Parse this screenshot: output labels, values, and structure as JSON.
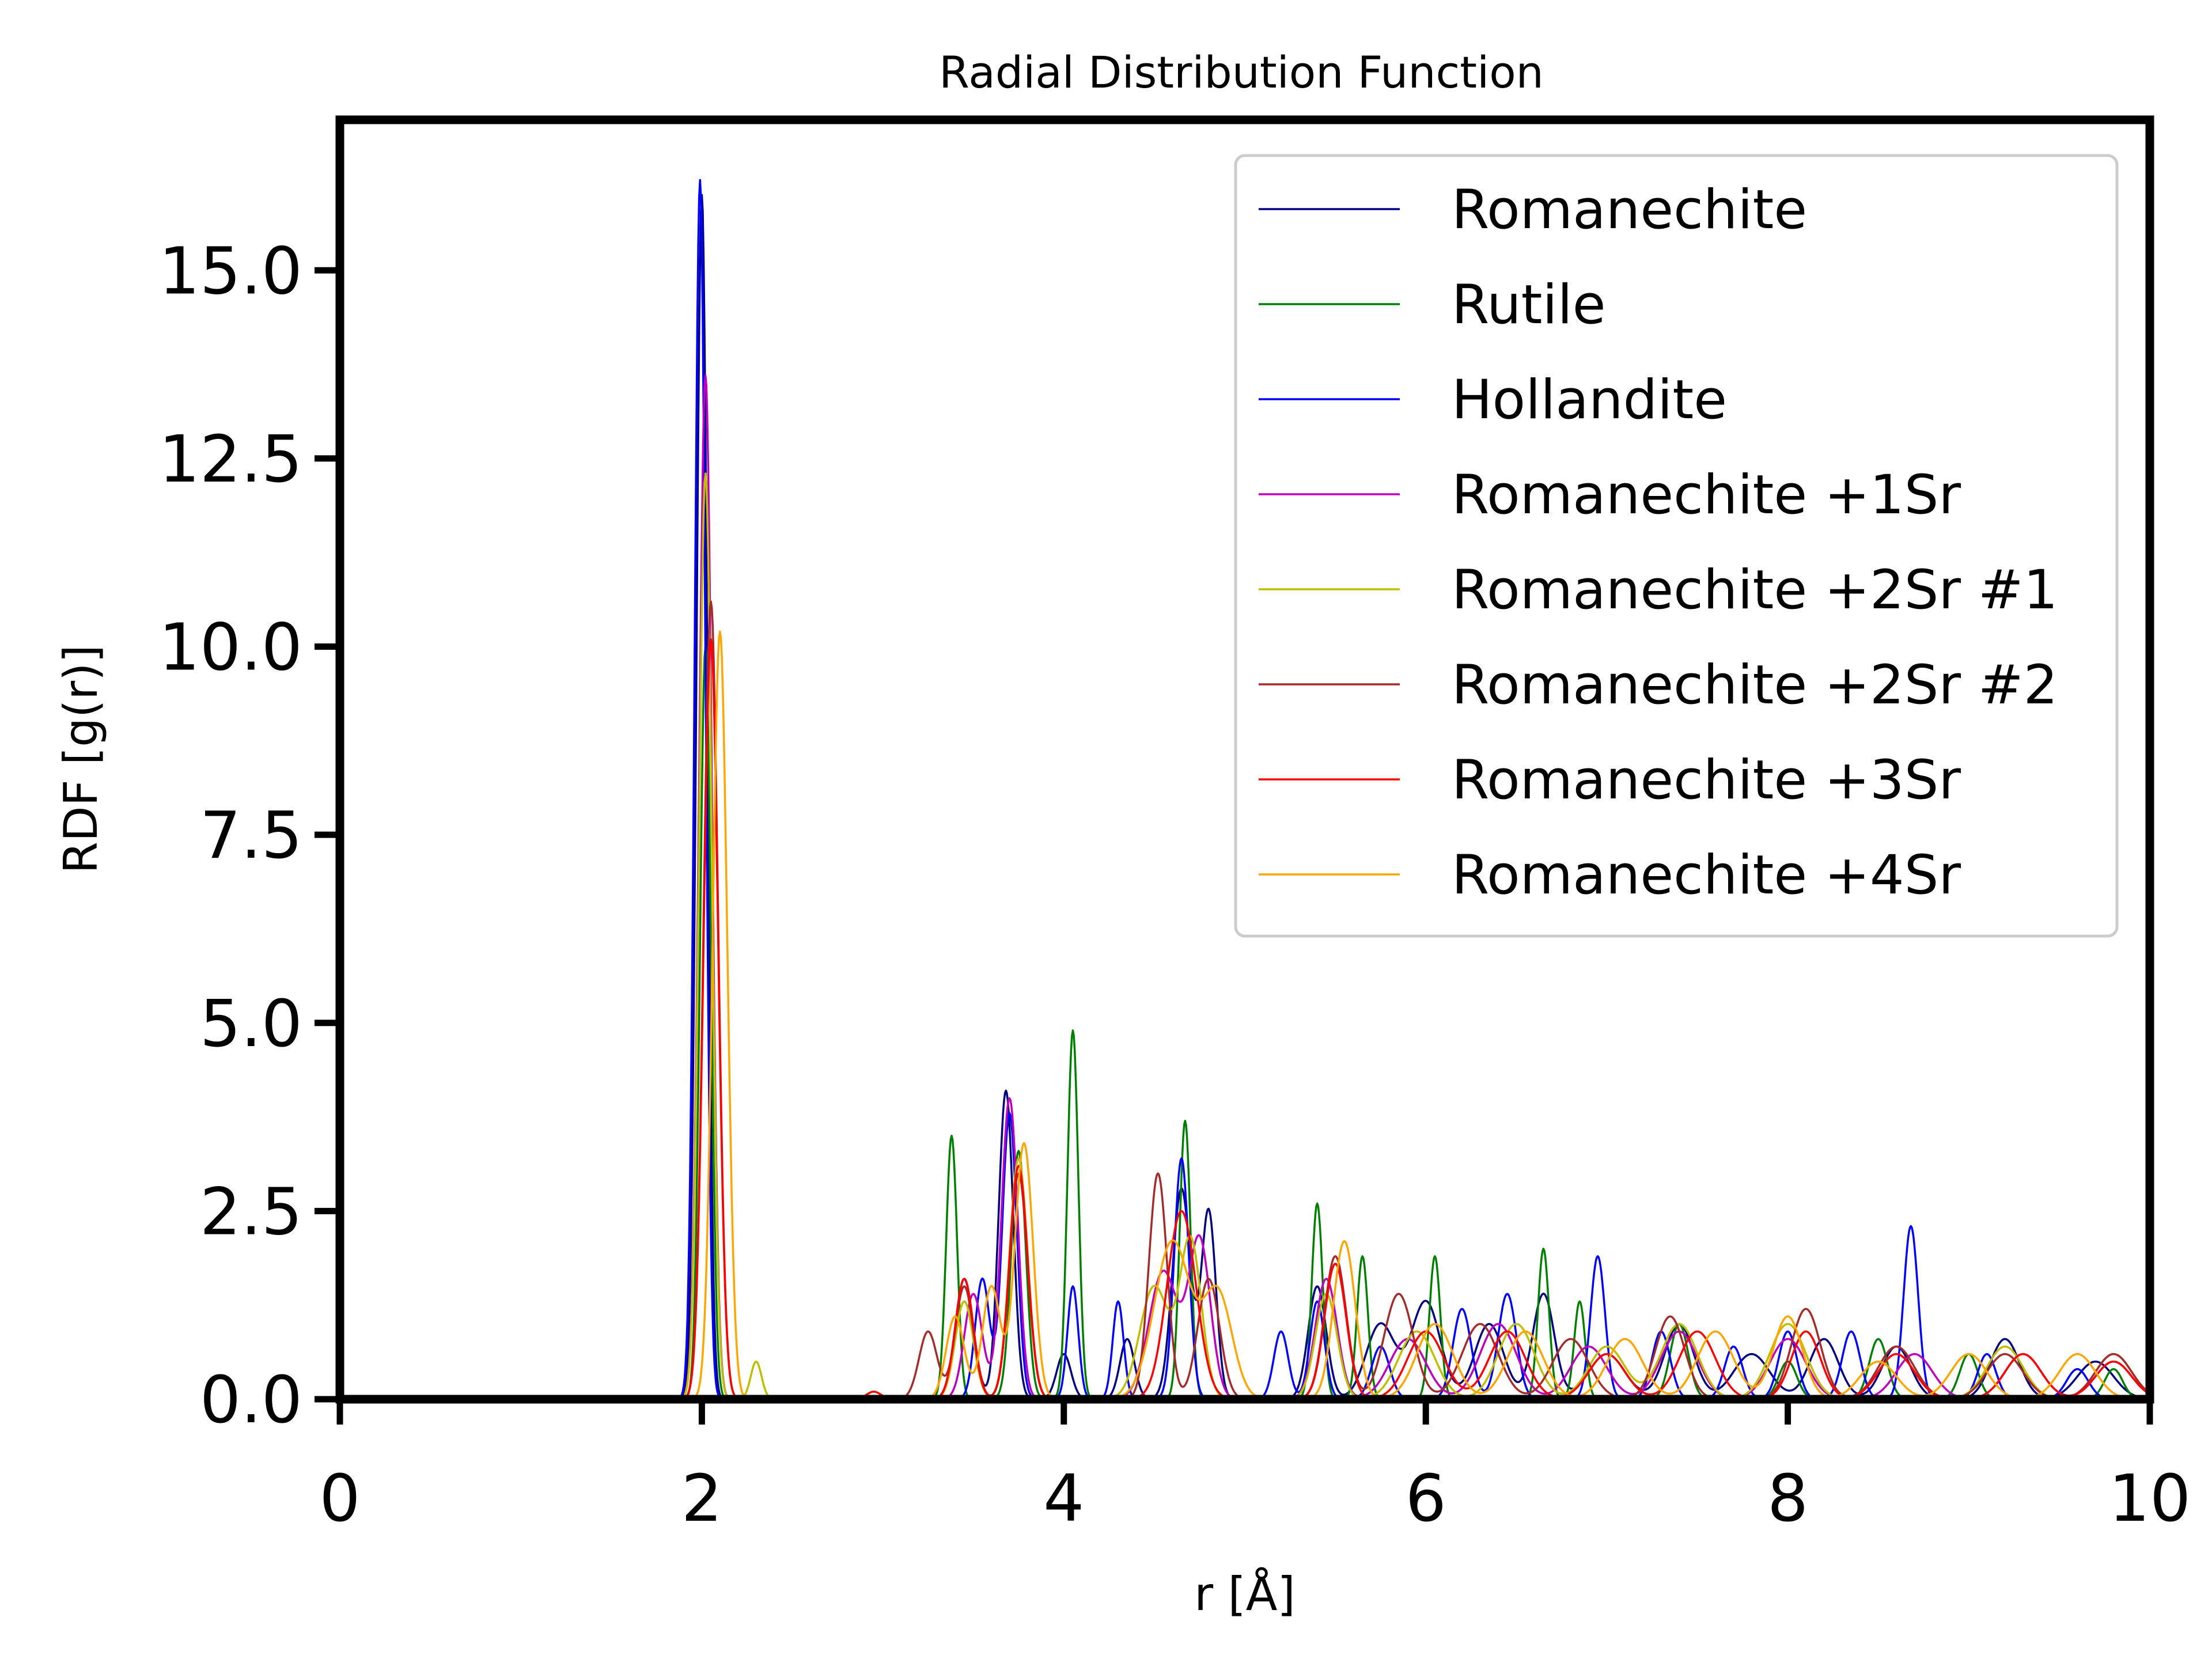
{
  "chart_data": {
    "type": "line",
    "title": "Radial Distribution Function",
    "xlabel": "r [Å]",
    "ylabel": "RDF [g(r)]",
    "xlim": [
      0,
      10
    ],
    "ylim": [
      0,
      17
    ],
    "xticks": [
      0,
      2,
      4,
      6,
      8,
      10
    ],
    "xtick_labels": [
      "0",
      "2",
      "4",
      "6",
      "8",
      "10"
    ],
    "yticks": [
      0,
      2.5,
      5,
      7.5,
      10,
      12.5,
      15
    ],
    "ytick_labels": [
      "0.0",
      "2.5",
      "5.0",
      "7.5",
      "10.0",
      "12.5",
      "15.0"
    ],
    "grid": false,
    "legend_position": "top-right",
    "series": [
      {
        "name": "Romanechite",
        "color": "#000080",
        "peaks": [
          [
            2.0,
            16.0,
            0.03
          ],
          [
            3.45,
            1.6,
            0.05
          ],
          [
            3.68,
            4.1,
            0.04
          ],
          [
            4.0,
            0.6,
            0.04
          ],
          [
            4.35,
            0.8,
            0.04
          ],
          [
            4.65,
            2.8,
            0.05
          ],
          [
            4.8,
            2.5,
            0.04
          ],
          [
            5.4,
            1.5,
            0.05
          ],
          [
            5.75,
            1.0,
            0.08
          ],
          [
            6.0,
            1.3,
            0.08
          ],
          [
            6.35,
            1.0,
            0.08
          ],
          [
            6.65,
            1.4,
            0.06
          ],
          [
            7.0,
            0.6,
            0.1
          ],
          [
            7.4,
            1.0,
            0.08
          ],
          [
            7.8,
            0.6,
            0.1
          ],
          [
            8.2,
            0.8,
            0.08
          ],
          [
            8.6,
            0.7,
            0.08
          ],
          [
            9.2,
            0.8,
            0.08
          ],
          [
            9.7,
            0.5,
            0.1
          ]
        ]
      },
      {
        "name": "Rutile",
        "color": "#008000",
        "peaks": [
          [
            2.02,
            10.0,
            0.03
          ],
          [
            3.38,
            3.5,
            0.03
          ],
          [
            3.75,
            3.3,
            0.04
          ],
          [
            4.05,
            4.9,
            0.03
          ],
          [
            4.67,
            3.7,
            0.03
          ],
          [
            5.4,
            2.6,
            0.03
          ],
          [
            5.65,
            1.9,
            0.03
          ],
          [
            6.05,
            1.9,
            0.03
          ],
          [
            6.65,
            2.0,
            0.03
          ],
          [
            6.85,
            1.3,
            0.03
          ],
          [
            7.4,
            1.0,
            0.05
          ],
          [
            8.0,
            0.5,
            0.05
          ],
          [
            8.5,
            0.8,
            0.05
          ],
          [
            9.0,
            0.6,
            0.05
          ],
          [
            9.8,
            0.4,
            0.05
          ]
        ]
      },
      {
        "name": "Hollandite",
        "color": "#0000ff",
        "peaks": [
          [
            1.99,
            16.2,
            0.03
          ],
          [
            3.55,
            1.6,
            0.04
          ],
          [
            3.7,
            3.8,
            0.04
          ],
          [
            4.05,
            1.5,
            0.03
          ],
          [
            4.3,
            1.3,
            0.03
          ],
          [
            4.65,
            3.2,
            0.04
          ],
          [
            5.2,
            0.9,
            0.04
          ],
          [
            5.4,
            1.3,
            0.04
          ],
          [
            5.75,
            0.7,
            0.05
          ],
          [
            6.2,
            1.2,
            0.05
          ],
          [
            6.45,
            1.4,
            0.05
          ],
          [
            6.95,
            1.9,
            0.04
          ],
          [
            7.3,
            0.9,
            0.05
          ],
          [
            7.7,
            0.7,
            0.05
          ],
          [
            8.0,
            0.9,
            0.05
          ],
          [
            8.35,
            0.9,
            0.05
          ],
          [
            8.68,
            2.3,
            0.04
          ],
          [
            9.1,
            0.6,
            0.05
          ],
          [
            9.6,
            0.4,
            0.06
          ]
        ]
      },
      {
        "name": "Romanechite +1Sr",
        "color": "#bf00bf",
        "peaks": [
          [
            2.02,
            13.6,
            0.035
          ],
          [
            3.5,
            1.4,
            0.05
          ],
          [
            3.7,
            4.0,
            0.045
          ],
          [
            4.55,
            1.7,
            0.08
          ],
          [
            4.75,
            2.1,
            0.06
          ],
          [
            5.45,
            1.6,
            0.06
          ],
          [
            5.9,
            0.8,
            0.1
          ],
          [
            6.4,
            1.0,
            0.1
          ],
          [
            6.9,
            0.7,
            0.1
          ],
          [
            7.4,
            0.9,
            0.1
          ],
          [
            8.0,
            0.8,
            0.1
          ],
          [
            8.7,
            0.6,
            0.1
          ],
          [
            9.3,
            0.6,
            0.1
          ],
          [
            9.8,
            0.5,
            0.1
          ]
        ]
      },
      {
        "name": "Romanechite +2Sr #1",
        "color": "#bfbf00",
        "peaks": [
          [
            2.02,
            12.3,
            0.035
          ],
          [
            2.3,
            0.5,
            0.03
          ],
          [
            3.45,
            1.3,
            0.05
          ],
          [
            3.75,
            3.2,
            0.05
          ],
          [
            4.5,
            1.5,
            0.08
          ],
          [
            4.7,
            2.1,
            0.06
          ],
          [
            5.45,
            1.4,
            0.06
          ],
          [
            5.95,
            0.9,
            0.1
          ],
          [
            6.5,
            1.0,
            0.1
          ],
          [
            7.0,
            0.7,
            0.1
          ],
          [
            7.4,
            1.0,
            0.1
          ],
          [
            8.0,
            1.0,
            0.1
          ],
          [
            8.6,
            0.6,
            0.1
          ],
          [
            9.2,
            0.7,
            0.1
          ],
          [
            9.8,
            0.6,
            0.1
          ]
        ]
      },
      {
        "name": "Romanechite +2Sr #2",
        "color": "#a52a2a",
        "peaks": [
          [
            2.05,
            10.6,
            0.04
          ],
          [
            3.25,
            0.9,
            0.05
          ],
          [
            3.45,
            1.5,
            0.05
          ],
          [
            3.75,
            3.0,
            0.05
          ],
          [
            4.52,
            3.0,
            0.05
          ],
          [
            4.8,
            1.6,
            0.06
          ],
          [
            5.5,
            1.9,
            0.06
          ],
          [
            5.85,
            1.4,
            0.08
          ],
          [
            6.3,
            1.0,
            0.1
          ],
          [
            6.8,
            0.8,
            0.1
          ],
          [
            7.35,
            1.1,
            0.08
          ],
          [
            8.1,
            1.2,
            0.08
          ],
          [
            8.6,
            0.7,
            0.1
          ],
          [
            9.2,
            0.6,
            0.1
          ],
          [
            9.8,
            0.6,
            0.1
          ]
        ]
      },
      {
        "name": "Romanechite +3Sr",
        "color": "#ff0000",
        "peaks": [
          [
            2.05,
            10.1,
            0.04
          ],
          [
            2.95,
            0.1,
            0.04
          ],
          [
            3.45,
            1.6,
            0.05
          ],
          [
            3.75,
            3.1,
            0.05
          ],
          [
            4.65,
            2.5,
            0.08
          ],
          [
            5.5,
            1.8,
            0.06
          ],
          [
            6.0,
            0.9,
            0.1
          ],
          [
            6.45,
            0.9,
            0.1
          ],
          [
            7.0,
            0.6,
            0.1
          ],
          [
            7.5,
            0.9,
            0.1
          ],
          [
            8.1,
            0.9,
            0.08
          ],
          [
            8.6,
            0.6,
            0.1
          ],
          [
            9.3,
            0.6,
            0.1
          ],
          [
            9.8,
            0.5,
            0.1
          ]
        ]
      },
      {
        "name": "Romanechite +4Sr",
        "color": "#ffa500",
        "peaks": [
          [
            2.1,
            10.2,
            0.04
          ],
          [
            3.4,
            1.1,
            0.05
          ],
          [
            3.6,
            1.5,
            0.05
          ],
          [
            3.78,
            3.4,
            0.05
          ],
          [
            4.6,
            2.1,
            0.1
          ],
          [
            4.85,
            1.4,
            0.08
          ],
          [
            5.55,
            2.1,
            0.06
          ],
          [
            6.05,
            1.0,
            0.1
          ],
          [
            6.55,
            0.9,
            0.1
          ],
          [
            7.1,
            0.8,
            0.1
          ],
          [
            7.6,
            0.9,
            0.1
          ],
          [
            8.0,
            1.1,
            0.08
          ],
          [
            8.5,
            0.5,
            0.1
          ],
          [
            9.0,
            0.6,
            0.1
          ],
          [
            9.6,
            0.6,
            0.1
          ]
        ]
      }
    ]
  }
}
